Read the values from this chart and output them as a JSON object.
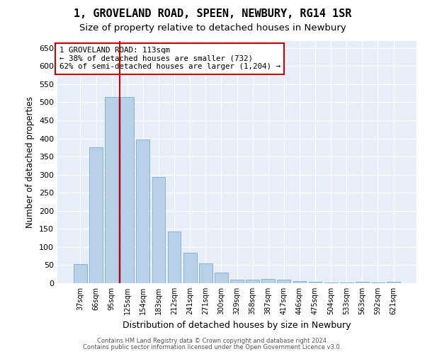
{
  "title": "1, GROVELAND ROAD, SPEEN, NEWBURY, RG14 1SR",
  "subtitle": "Size of property relative to detached houses in Newbury",
  "xlabel": "Distribution of detached houses by size in Newbury",
  "ylabel": "Number of detached properties",
  "categories": [
    "37sqm",
    "66sqm",
    "95sqm",
    "125sqm",
    "154sqm",
    "183sqm",
    "212sqm",
    "241sqm",
    "271sqm",
    "300sqm",
    "329sqm",
    "358sqm",
    "387sqm",
    "417sqm",
    "446sqm",
    "475sqm",
    "504sqm",
    "533sqm",
    "563sqm",
    "592sqm",
    "621sqm"
  ],
  "values": [
    52,
    375,
    515,
    515,
    397,
    293,
    142,
    84,
    55,
    29,
    10,
    10,
    12,
    10,
    5,
    3,
    1,
    1,
    4,
    1,
    4
  ],
  "bar_color": "#b8d0e8",
  "bar_edge_color": "#7aafd0",
  "vline_color": "#cc0000",
  "vline_x": 2.5,
  "annotation_text": "1 GROVELAND ROAD: 113sqm\n← 38% of detached houses are smaller (732)\n62% of semi-detached houses are larger (1,204) →",
  "annotation_box_color": "#ffffff",
  "annotation_box_edge_color": "#cc0000",
  "ylim": [
    0,
    670
  ],
  "yticks": [
    0,
    50,
    100,
    150,
    200,
    250,
    300,
    350,
    400,
    450,
    500,
    550,
    600,
    650
  ],
  "bg_color": "#e8eef8",
  "grid_color": "#ffffff",
  "title_fontsize": 11,
  "subtitle_fontsize": 9.5,
  "footer_line1": "Contains HM Land Registry data © Crown copyright and database right 2024.",
  "footer_line2": "Contains public sector information licensed under the Open Government Licence v3.0."
}
